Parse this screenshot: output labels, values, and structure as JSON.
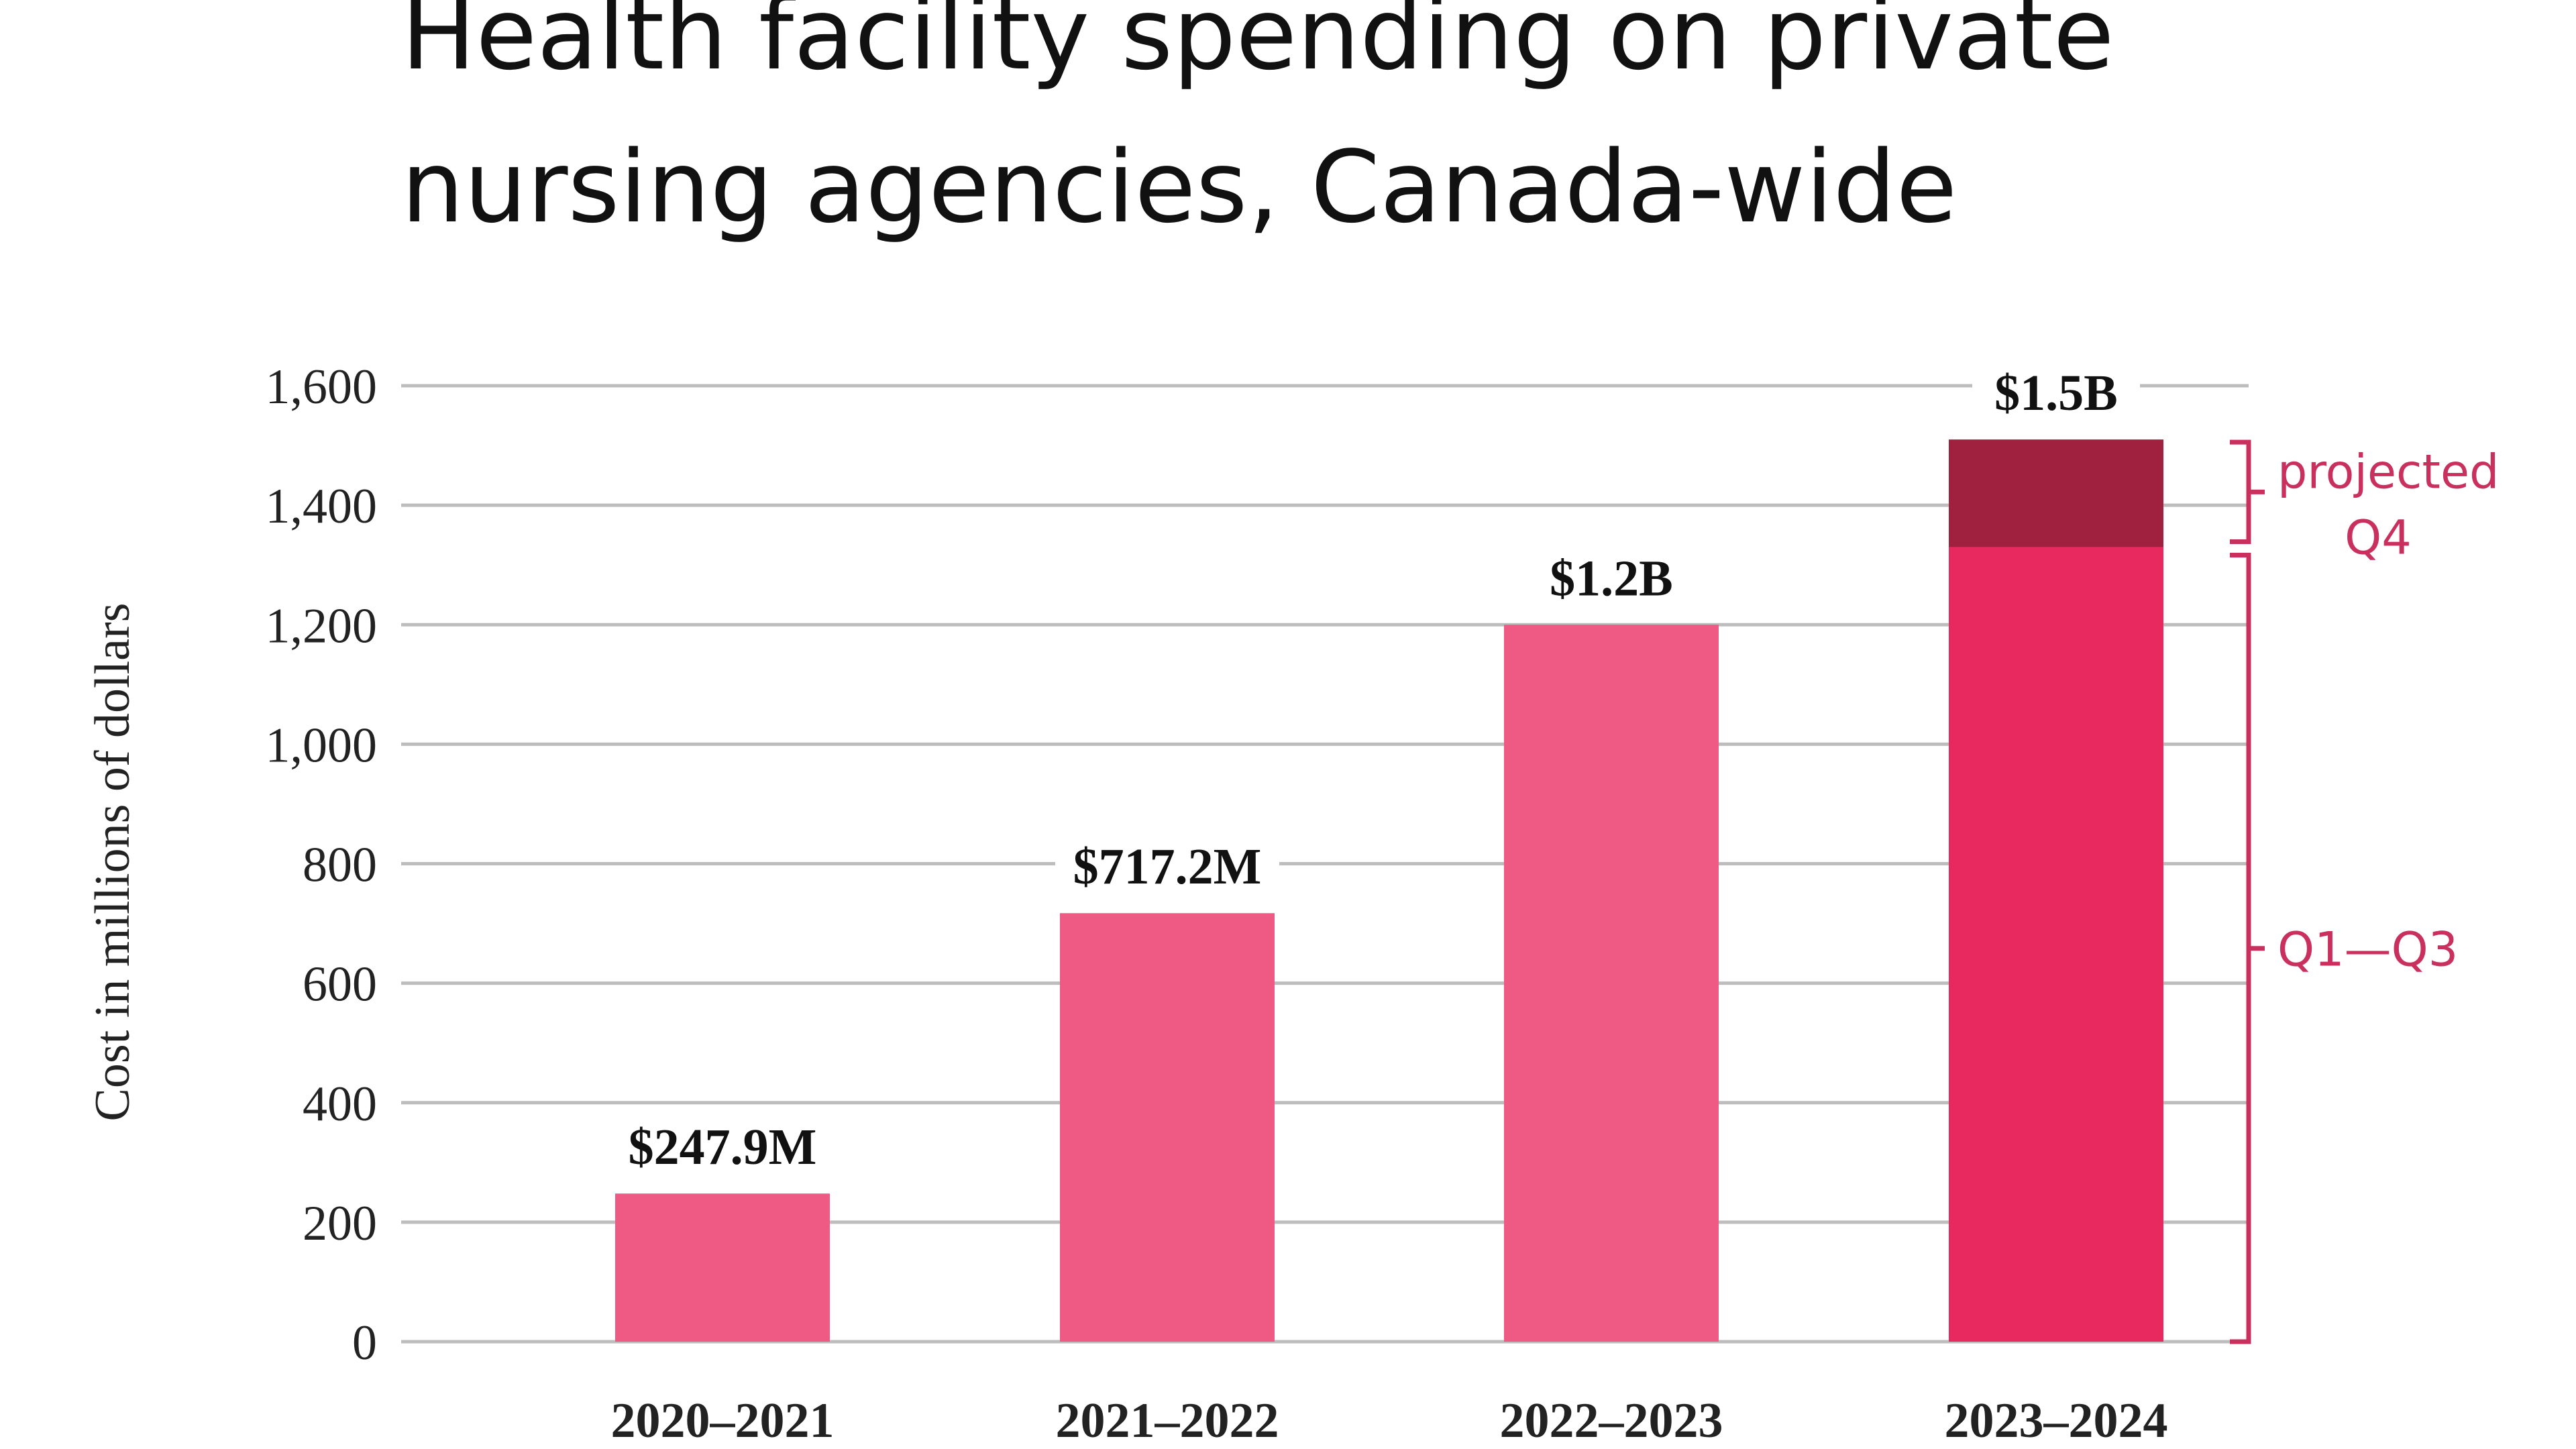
{
  "chart_data": {
    "type": "bar",
    "title_lines": [
      "Health facility spending on private",
      "nursing agencies, Canada-wide"
    ],
    "ylabel": "Cost in millions of dollars",
    "categories": [
      "2020–2021",
      "2021–2022",
      "2022–2023",
      "2023–2024"
    ],
    "ylim": [
      0,
      1600
    ],
    "yticks": [
      0,
      200,
      400,
      600,
      800,
      1000,
      1200,
      1400,
      1600
    ],
    "ytick_labels": [
      "0",
      "200",
      "400",
      "600",
      "800",
      "1,000",
      "1,200",
      "1,400",
      "1,600"
    ],
    "grid": true,
    "series": [
      {
        "name": "Q1—Q3",
        "values": [
          247.9,
          717.2,
          1200,
          1330
        ]
      },
      {
        "name": "projected Q4",
        "values": [
          0,
          0,
          0,
          180
        ]
      }
    ],
    "data_labels": [
      "$247.9M",
      "$717.2M",
      "$1.2B",
      "$1.5B"
    ],
    "annotations": {
      "projected": [
        "projected",
        "Q4"
      ],
      "q1q3": "Q1—Q3"
    },
    "colors": {
      "bar": "#ee5a84",
      "bar_last": "#e8295f",
      "projected": "#a0213f",
      "annotation": "#c9305e",
      "grid": "#bdbdbd"
    }
  }
}
